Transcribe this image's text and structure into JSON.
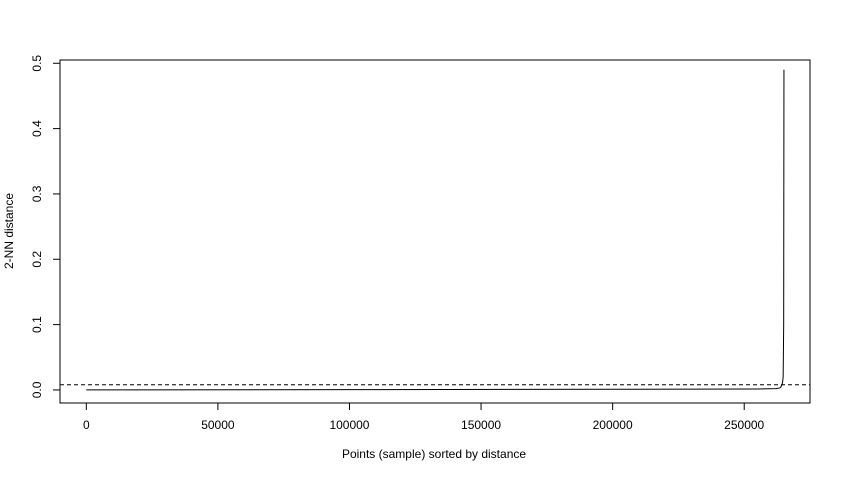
{
  "chart_data": {
    "type": "line",
    "title": "",
    "xlabel": "Points (sample) sorted by distance",
    "ylabel": "2-NN distance",
    "xlim": [
      -10000,
      275000
    ],
    "ylim": [
      -0.02,
      0.505
    ],
    "x_ticks": [
      0,
      50000,
      100000,
      150000,
      200000,
      250000
    ],
    "x_tick_labels": [
      "0",
      "50000",
      "100000",
      "150000",
      "200000",
      "250000"
    ],
    "y_ticks": [
      0.0,
      0.1,
      0.2,
      0.3,
      0.4,
      0.5
    ],
    "y_tick_labels": [
      "0.0",
      "0.1",
      "0.2",
      "0.3",
      "0.4",
      "0.5"
    ],
    "grid": false,
    "series": [
      {
        "x": [
          0,
          100000,
          200000,
          255000,
          262000,
          263500,
          264000,
          264300,
          264600,
          264800,
          265000,
          265100
        ],
        "y": [
          0.0,
          0.0005,
          0.001,
          0.0015,
          0.002,
          0.003,
          0.005,
          0.008,
          0.012,
          0.02,
          0.1,
          0.49
        ],
        "color": "#000000",
        "style": "solid"
      }
    ],
    "reference_lines": [
      {
        "orientation": "horizontal",
        "y": 0.008,
        "style": "dashed",
        "color": "#000000"
      }
    ]
  }
}
